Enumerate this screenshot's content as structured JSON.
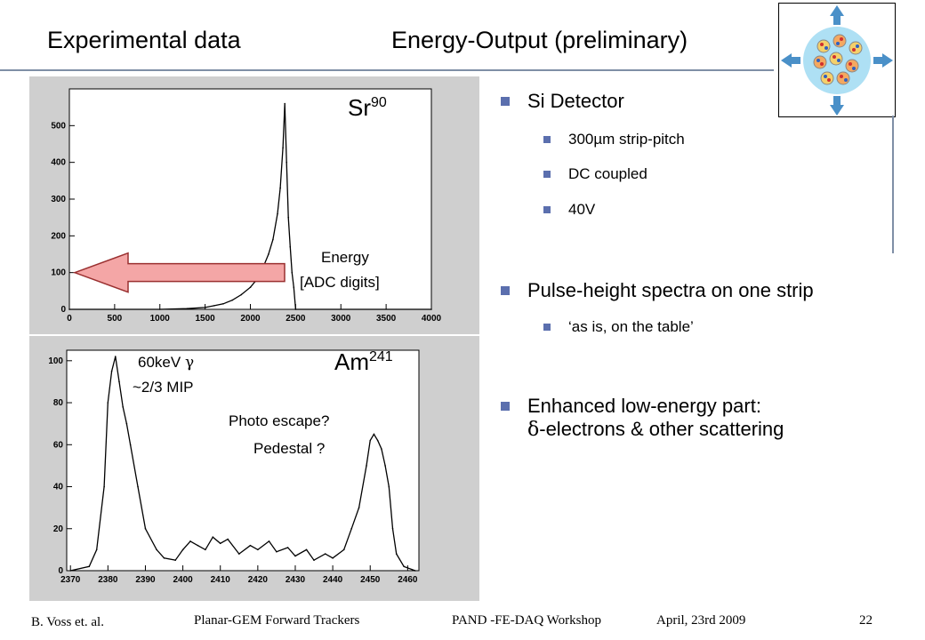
{
  "title": {
    "left": "Experimental data",
    "right": "Energy-Output (preliminary)"
  },
  "colors": {
    "accent": "#5b6fae",
    "arrow_fill": "#f4a6a6",
    "arrow_stroke": "#9a3030",
    "plot_bg": "#cfcfcf"
  },
  "logo": {
    "icon": "detector-sphere-icon"
  },
  "bullets": [
    {
      "text": "Si Detector",
      "subs": [
        "300µm strip-pitch",
        "DC coupled",
        "40V"
      ]
    },
    {
      "text": "Pulse-height spectra on one strip",
      "subs": [
        "‘as is, on the table’"
      ]
    },
    {
      "line1": "Enhanced low-energy part:",
      "line2": "-electrons & other scattering",
      "symbol": "δ"
    }
  ],
  "sr_plot": {
    "isotope": "Sr",
    "mass": "90",
    "energy_label": "Energy",
    "energy_unit": "[ADC digits]"
  },
  "am_plot": {
    "isotope": "Am",
    "mass": "241",
    "peak_label": "60keV",
    "gamma": "γ",
    "mip_label": "~2/3 MIP",
    "escape_label": "Photo escape?",
    "pedestal_label": "Pedestal ?"
  },
  "footer": {
    "author": "B. Voss et. al.",
    "talk": "Planar-GEM Forward Trackers",
    "workshop": "PAND -FE-DAQ Workshop",
    "date": "April, 23rd 2009",
    "page": "22"
  },
  "chart_data": [
    {
      "type": "line",
      "title": "",
      "xlabel": "Energy [ADC digits]",
      "ylabel": "",
      "xlim": [
        0,
        4000
      ],
      "ylim": [
        0,
        600
      ],
      "xticks": [
        0,
        500,
        1000,
        1500,
        2000,
        2500,
        3000,
        3500,
        4000
      ],
      "yticks": [
        0,
        100,
        200,
        300,
        400,
        500
      ],
      "series": [
        {
          "x": [
            0,
            1000,
            1300,
            1500,
            1600,
            1700,
            1800,
            1900,
            2000,
            2050,
            2100,
            2150,
            2200,
            2250,
            2300,
            2330,
            2360,
            2380,
            2400,
            2420,
            2440,
            2460,
            2480,
            2500,
            4000
          ],
          "values": [
            0,
            0,
            2,
            5,
            10,
            15,
            25,
            40,
            60,
            75,
            95,
            120,
            150,
            190,
            260,
            330,
            440,
            560,
            400,
            250,
            170,
            100,
            60,
            0,
            0
          ]
        }
      ]
    },
    {
      "type": "line",
      "title": "",
      "xlim": [
        2369,
        2463
      ],
      "ylim": [
        0,
        105
      ],
      "xticks": [
        2370,
        2380,
        2390,
        2400,
        2410,
        2420,
        2430,
        2440,
        2450,
        2460
      ],
      "yticks": [
        0,
        20,
        40,
        60,
        80,
        100
      ],
      "series": [
        {
          "x": [
            2370,
            2375,
            2377,
            2379,
            2380,
            2381,
            2382,
            2383,
            2384,
            2385,
            2386,
            2388,
            2390,
            2393,
            2395,
            2398,
            2400,
            2402,
            2404,
            2406,
            2408,
            2410,
            2412,
            2415,
            2418,
            2420,
            2423,
            2425,
            2428,
            2430,
            2433,
            2435,
            2438,
            2440,
            2443,
            2445,
            2447,
            2449,
            2450,
            2451,
            2452,
            2453,
            2454,
            2455,
            2456,
            2457,
            2459,
            2462
          ],
          "values": [
            0,
            2,
            10,
            40,
            80,
            95,
            102,
            90,
            78,
            70,
            60,
            40,
            20,
            10,
            6,
            5,
            10,
            14,
            12,
            10,
            16,
            13,
            15,
            8,
            12,
            10,
            14,
            9,
            11,
            7,
            10,
            5,
            8,
            6,
            10,
            20,
            30,
            50,
            62,
            65,
            62,
            58,
            50,
            40,
            20,
            8,
            2,
            0
          ]
        }
      ]
    }
  ]
}
